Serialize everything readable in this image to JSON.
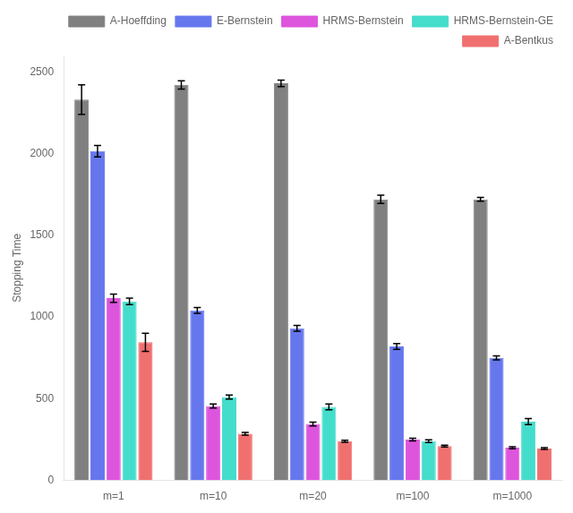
{
  "chart_data": {
    "type": "bar",
    "categories": [
      "m=1",
      "m=10",
      "m=20",
      "m=100",
      "m=1000"
    ],
    "ylabel": "Stopping Time",
    "ylim": [
      0,
      2600
    ],
    "yticks": [
      0,
      500,
      1000,
      1500,
      2000,
      2500
    ],
    "grid": false,
    "legend": "upper right",
    "series": [
      {
        "name": "A-Hoeffding",
        "color": "#808080",
        "values": [
          2330,
          2420,
          2430,
          1720,
          1720
        ],
        "errors": [
          90,
          25,
          20,
          25,
          12
        ]
      },
      {
        "name": "E-Bernstein",
        "color": "#6677ee",
        "values": [
          2015,
          1040,
          930,
          820,
          750
        ],
        "errors": [
          35,
          18,
          18,
          18,
          12
        ]
      },
      {
        "name": "HRMS-Bernstein",
        "color": "#dd55dd",
        "values": [
          1115,
          455,
          345,
          250,
          200
        ],
        "errors": [
          25,
          12,
          12,
          8,
          6
        ]
      },
      {
        "name": "HRMS-Bernstein-GE",
        "color": "#44ddcc",
        "values": [
          1095,
          510,
          450,
          240,
          360
        ],
        "errors": [
          20,
          12,
          18,
          8,
          18
        ]
      },
      {
        "name": "A-Bentkus",
        "color": "#f07070",
        "values": [
          845,
          285,
          240,
          210,
          195
        ],
        "errors": [
          55,
          8,
          6,
          6,
          6
        ]
      }
    ]
  }
}
